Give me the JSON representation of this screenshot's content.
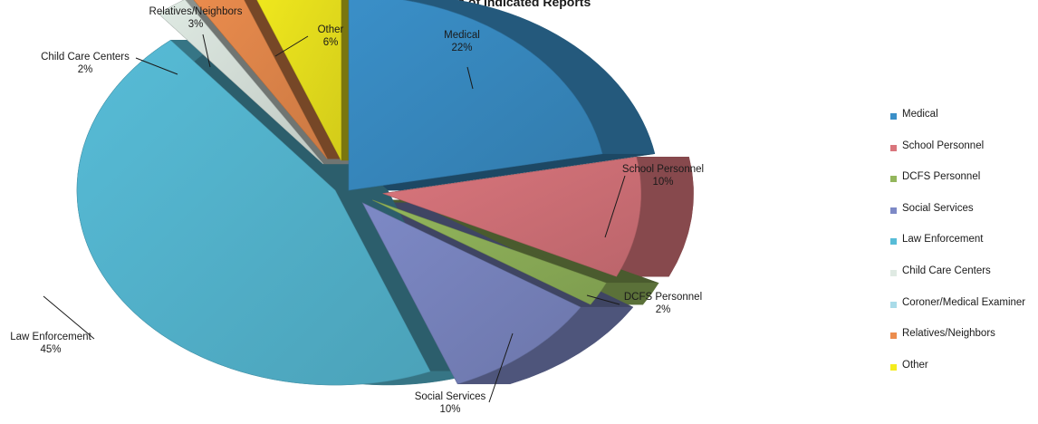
{
  "chart_data": {
    "type": "pie",
    "title": "Sources of Indicated Reports",
    "slices": [
      {
        "label": "Medical",
        "value": 22,
        "display": "22%",
        "color": "#3a8fc8"
      },
      {
        "label": "School Personnel",
        "value": 10,
        "display": "10%",
        "color": "#d9757c"
      },
      {
        "label": "DCFS Personnel",
        "value": 2,
        "display": "2%",
        "color": "#93b65c"
      },
      {
        "label": "Social Services",
        "value": 10,
        "display": "10%",
        "color": "#7d89c6"
      },
      {
        "label": "Law Enforcement",
        "value": 45,
        "display": "45%",
        "color": "#57bcd7"
      },
      {
        "label": "Child Care Centers",
        "value": 2,
        "display": "2%",
        "color": "#dfeae3"
      },
      {
        "label": "Coroner/Medical Examiner",
        "value": 0,
        "display": "",
        "color": "#a9dbe8"
      },
      {
        "label": "Relatives/Neighbors",
        "value": 3,
        "display": "3%",
        "color": "#ec8d4e"
      },
      {
        "label": "Other",
        "value": 6,
        "display": "6%",
        "color": "#f4ec1e"
      }
    ],
    "legend_placement": "right"
  }
}
